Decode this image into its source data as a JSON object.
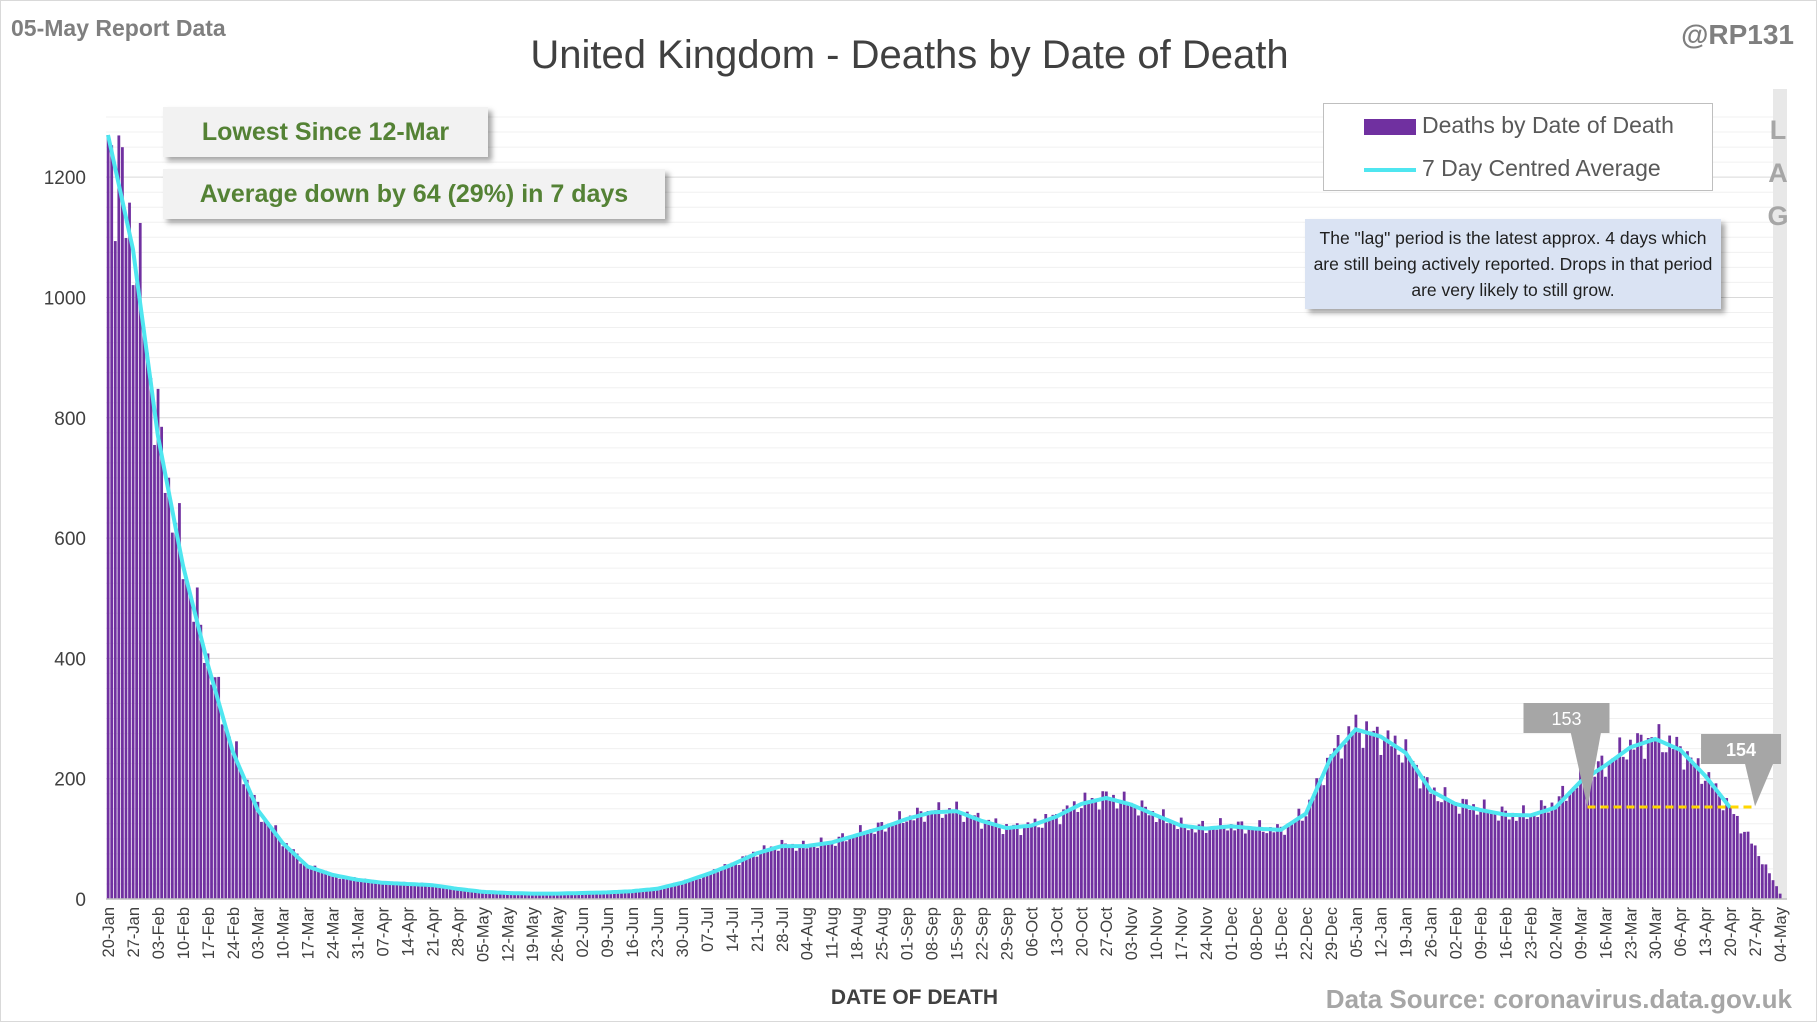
{
  "header": {
    "report_label": "05-May Report Data",
    "title": "United Kingdom - Deaths by Date of Death",
    "handle": "@RP131"
  },
  "callouts": {
    "lowest": "Lowest Since 12-Mar",
    "average": "Average down by 64 (29%) in 7 days"
  },
  "legend": {
    "bars": "Deaths by Date of Death",
    "line": "7 Day Centred Average"
  },
  "lag_note": "The \"lag\" period is the latest approx. 4 days which are still being actively reported. Drops in that period are very likely to still grow.",
  "lag_letters": [
    "L",
    "A",
    "G"
  ],
  "footer": {
    "x_axis_title": "DATE OF DEATH",
    "source": "Data Source: coronavirus.data.gov.uk"
  },
  "colors": {
    "bars": "#7030a0",
    "average_line": "#4fe6f0",
    "reference_line": "#ffd700",
    "marker": "#a6a6a6",
    "lag_band": "#e8e8e8"
  },
  "chart_data": {
    "type": "bar",
    "title": "United Kingdom - Deaths by Date of Death",
    "xlabel": "DATE OF DEATH",
    "ylabel": "",
    "ylim": [
      0,
      1300
    ],
    "yticks": [
      0,
      200,
      400,
      600,
      800,
      1000,
      1200
    ],
    "grid": true,
    "legend_position": "top-right",
    "categories": [
      "20-Jan",
      "27-Jan",
      "03-Feb",
      "10-Feb",
      "17-Feb",
      "24-Feb",
      "03-Mar",
      "10-Mar",
      "17-Mar",
      "24-Mar",
      "31-Mar",
      "07-Apr",
      "14-Apr",
      "21-Apr",
      "28-Apr",
      "05-May",
      "12-May",
      "19-May",
      "26-May",
      "02-Jun",
      "09-Jun",
      "16-Jun",
      "23-Jun",
      "30-Jun",
      "07-Jul",
      "14-Jul",
      "21-Jul",
      "28-Jul",
      "04-Aug",
      "11-Aug",
      "18-Aug",
      "25-Aug",
      "01-Sep",
      "08-Sep",
      "15-Sep",
      "22-Sep",
      "29-Sep",
      "06-Oct",
      "13-Oct",
      "20-Oct",
      "27-Oct",
      "03-Nov",
      "10-Nov",
      "17-Nov",
      "24-Nov",
      "01-Dec",
      "08-Dec",
      "15-Dec",
      "22-Dec",
      "29-Dec",
      "05-Jan",
      "12-Jan",
      "19-Jan",
      "26-Jan",
      "02-Feb",
      "09-Feb",
      "16-Feb",
      "23-Feb",
      "02-Mar",
      "09-Mar",
      "16-Mar",
      "23-Mar",
      "30-Mar",
      "06-Apr",
      "13-Apr",
      "20-Apr",
      "27-Apr",
      "04-May"
    ],
    "series": [
      {
        "name": "Deaths by Date of Death",
        "type": "bar",
        "weekly_points": [
          1270,
          1100,
          780,
          560,
          400,
          250,
          150,
          95,
          55,
          40,
          33,
          28,
          26,
          24,
          18,
          13,
          11,
          10,
          10,
          11,
          11,
          14,
          18,
          28,
          42,
          58,
          78,
          90,
          88,
          95,
          108,
          120,
          135,
          145,
          148,
          130,
          118,
          122,
          138,
          160,
          170,
          158,
          140,
          122,
          118,
          122,
          118,
          115,
          145,
          240,
          285,
          270,
          245,
          180,
          160,
          150,
          140,
          140,
          160,
          198,
          225,
          255,
          268,
          250,
          205,
          150,
          85,
          10
        ]
      },
      {
        "name": "7 Day Centred Average",
        "type": "line",
        "weekly_points": [
          1270,
          1080,
          770,
          555,
          390,
          245,
          148,
          93,
          54,
          40,
          32,
          27,
          25,
          23,
          17,
          12,
          10,
          9,
          9,
          10,
          11,
          13,
          17,
          27,
          41,
          57,
          76,
          88,
          88,
          94,
          106,
          118,
          133,
          144,
          146,
          130,
          118,
          122,
          137,
          158,
          168,
          157,
          139,
          122,
          117,
          121,
          117,
          115,
          142,
          235,
          282,
          270,
          243,
          180,
          158,
          148,
          140,
          139,
          152,
          195,
          222,
          252,
          266,
          248,
          205,
          152
        ]
      }
    ],
    "annotations": [
      {
        "label": "153",
        "value": 153,
        "date": "11-Mar"
      },
      {
        "label": "154",
        "value": 154,
        "date": "27-Apr"
      }
    ],
    "reference_line": {
      "value": 153,
      "from": "11-Mar",
      "to": "27-Apr"
    }
  }
}
